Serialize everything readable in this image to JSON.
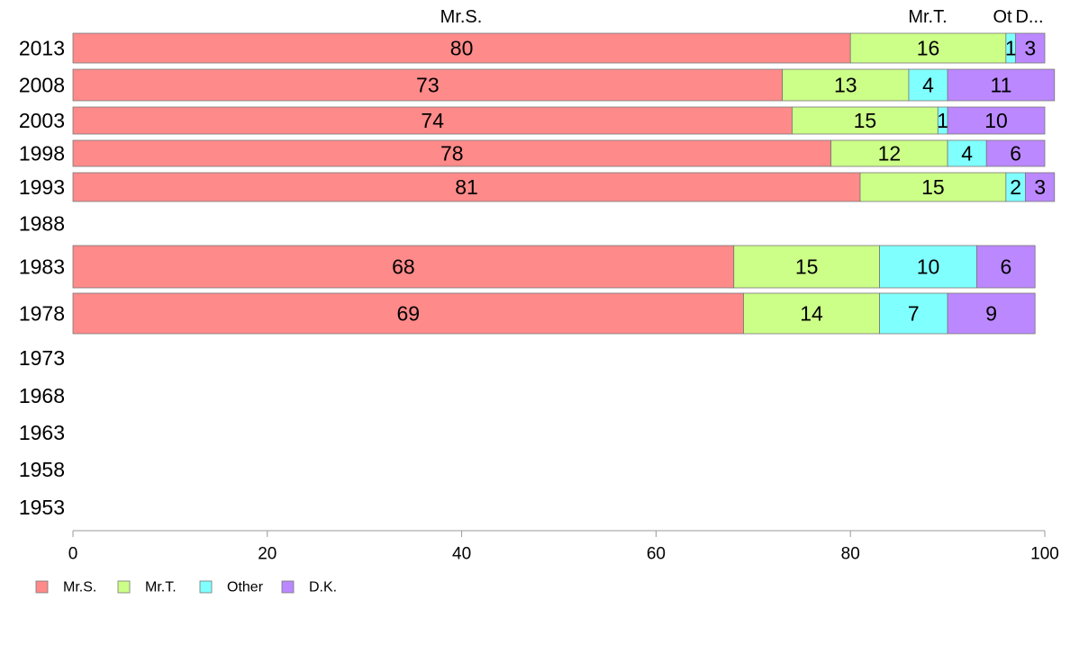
{
  "chart_data": {
    "type": "bar",
    "orientation": "horizontal",
    "stacked": true,
    "categories": [
      "2013",
      "2008",
      "2003",
      "1998",
      "1993",
      "1988",
      "1983",
      "1978",
      "1973",
      "1968",
      "1963",
      "1958",
      "1953"
    ],
    "series": [
      {
        "name": "Mr.S.",
        "color": "#ff8a8a",
        "values": [
          80,
          73,
          74,
          78,
          81,
          null,
          68,
          69,
          null,
          null,
          null,
          null,
          null
        ]
      },
      {
        "name": "Mr.T.",
        "color": "#ccff88",
        "values": [
          16,
          13,
          15,
          12,
          15,
          null,
          15,
          14,
          null,
          null,
          null,
          null,
          null
        ]
      },
      {
        "name": "Other",
        "color": "#80ffff",
        "values": [
          1,
          4,
          1,
          4,
          2,
          null,
          10,
          7,
          null,
          null,
          null,
          null,
          null
        ]
      },
      {
        "name": "D.K.",
        "color": "#bb88ff",
        "values": [
          3,
          11,
          10,
          6,
          3,
          null,
          6,
          9,
          null,
          null,
          null,
          null,
          null
        ]
      }
    ],
    "top_labels": [
      "Mr.S.",
      "Mr.T.",
      "Ot",
      "D..."
    ],
    "xlim": [
      0,
      100
    ],
    "xticks": [
      0,
      20,
      40,
      60,
      80,
      100
    ],
    "grid": false,
    "legend_position": "bottom-left",
    "title": "",
    "xlabel": "",
    "ylabel": ""
  }
}
